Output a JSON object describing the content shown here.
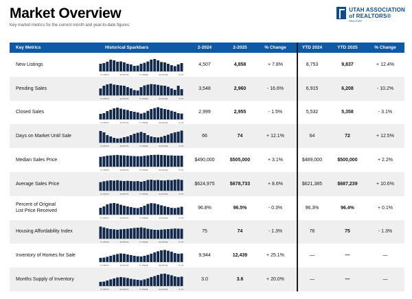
{
  "header": {
    "title": "Market Overview",
    "subtitle": "Key market metrics for the current month and year-to-date figures."
  },
  "logo": {
    "line1": "UTAH ASSOCIATION",
    "line2": "of REALTORS®",
    "small": "REALTOR®",
    "color": "#0f4a8a"
  },
  "colors": {
    "header_bg": "#0f5aa8",
    "bar": "#13294b",
    "alt_row": "#efefef"
  },
  "table": {
    "headers": [
      "Key Metrics",
      "Historical Sparkbars",
      "2-2024",
      "2-2025",
      "% Change",
      "YTD 2024",
      "YTD 2025",
      "% Change"
    ],
    "spark_ticks": [
      "2-2023",
      "8-2023",
      "2-2024",
      "8-2024",
      "2-2025"
    ],
    "rows": [
      {
        "metric": [
          "New Listings"
        ],
        "v1": "4,507",
        "v2": "4,858",
        "pct": "+ 7.8%",
        "y1": "8,753",
        "y2": "9,837",
        "ypct": "+ 12.4%",
        "spark": [
          0.55,
          0.6,
          0.7,
          0.85,
          0.8,
          0.7,
          0.72,
          0.65,
          0.55,
          0.5,
          0.4,
          0.42,
          0.55,
          0.62,
          0.72,
          0.85,
          0.9,
          0.8,
          0.68,
          0.65,
          0.55,
          0.45,
          0.38,
          0.5,
          0.6
        ]
      },
      {
        "metric": [
          "Pending Sales"
        ],
        "v1": "3,548",
        "v2": "2,960",
        "pct": "- 16.6%",
        "y1": "6,915",
        "y2": "6,208",
        "ypct": "- 10.2%",
        "spark": [
          0.5,
          0.7,
          0.8,
          0.85,
          0.78,
          0.75,
          0.72,
          0.7,
          0.6,
          0.5,
          0.38,
          0.35,
          0.6,
          0.72,
          0.78,
          0.82,
          0.8,
          0.76,
          0.72,
          0.7,
          0.62,
          0.5,
          0.4,
          0.7,
          0.45
        ]
      },
      {
        "metric": [
          "Closed Sales"
        ],
        "v1": "2,999",
        "v2": "2,955",
        "pct": "- 1.5%",
        "y1": "5,532",
        "y2": "5,358",
        "ypct": "- 3.1%",
        "spark": [
          0.4,
          0.45,
          0.6,
          0.7,
          0.8,
          0.85,
          0.78,
          0.72,
          0.68,
          0.6,
          0.55,
          0.5,
          0.42,
          0.48,
          0.62,
          0.75,
          0.82,
          0.88,
          0.8,
          0.75,
          0.7,
          0.62,
          0.55,
          0.45,
          0.42
        ]
      },
      {
        "metric": [
          "Days on Market Until Sale"
        ],
        "v1": "66",
        "v2": "74",
        "pct": "+ 12.1%",
        "y1": "64",
        "y2": "72",
        "ypct": "+ 12.5%",
        "spark": [
          0.85,
          0.75,
          0.55,
          0.45,
          0.35,
          0.3,
          0.32,
          0.4,
          0.45,
          0.55,
          0.65,
          0.72,
          0.78,
          0.7,
          0.55,
          0.45,
          0.4,
          0.38,
          0.42,
          0.5,
          0.58,
          0.68,
          0.75,
          0.8,
          0.88
        ]
      },
      {
        "metric": [
          "Median Sales Price"
        ],
        "v1": "$490,000",
        "v2": "$505,000",
        "pct": "+ 3.1%",
        "y1": "$489,000",
        "y2": "$500,000",
        "ypct": "+ 2.2%",
        "spark": [
          0.72,
          0.75,
          0.8,
          0.82,
          0.84,
          0.85,
          0.83,
          0.82,
          0.8,
          0.78,
          0.77,
          0.76,
          0.76,
          0.79,
          0.82,
          0.85,
          0.86,
          0.87,
          0.85,
          0.84,
          0.82,
          0.82,
          0.8,
          0.8,
          0.8
        ]
      },
      {
        "metric": [
          "Average Sales Price"
        ],
        "v1": "$624,975",
        "v2": "$678,733",
        "pct": "+ 8.6%",
        "y1": "$621,385",
        "y2": "$687,239",
        "ypct": "+ 10.6%",
        "spark": [
          0.62,
          0.68,
          0.72,
          0.75,
          0.73,
          0.76,
          0.72,
          0.7,
          0.72,
          0.7,
          0.68,
          0.7,
          0.65,
          0.7,
          0.78,
          0.8,
          0.76,
          0.78,
          0.75,
          0.74,
          0.78,
          0.76,
          0.8,
          0.82,
          0.78
        ]
      },
      {
        "metric": [
          "Percent of Original",
          "List Price Received"
        ],
        "v1": "96.8%",
        "v2": "96.5%",
        "pct": "- 0.3%",
        "y1": "96.3%",
        "y2": "96.4%",
        "ypct": "+ 0.1%",
        "spark": [
          0.5,
          0.6,
          0.75,
          0.82,
          0.85,
          0.8,
          0.72,
          0.65,
          0.6,
          0.55,
          0.5,
          0.48,
          0.55,
          0.65,
          0.78,
          0.84,
          0.82,
          0.75,
          0.68,
          0.62,
          0.56,
          0.5,
          0.48,
          0.52,
          0.58
        ]
      },
      {
        "metric": [
          "Housing Affordability Index"
        ],
        "v1": "75",
        "v2": "74",
        "pct": "- 1.3%",
        "y1": "76",
        "y2": "75",
        "ypct": "- 1.3%",
        "spark": [
          0.88,
          0.82,
          0.75,
          0.7,
          0.68,
          0.65,
          0.68,
          0.7,
          0.72,
          0.75,
          0.78,
          0.8,
          0.82,
          0.78,
          0.72,
          0.68,
          0.65,
          0.64,
          0.66,
          0.68,
          0.7,
          0.72,
          0.74,
          0.73,
          0.72
        ]
      },
      {
        "metric": [
          "Inventory of Homes for Sale"
        ],
        "v1": "9,944",
        "v2": "12,439",
        "pct": "+ 25.1%",
        "y1": "—",
        "y2": "—",
        "ypct": "—",
        "spark": [
          0.3,
          0.32,
          0.38,
          0.45,
          0.52,
          0.58,
          0.62,
          0.6,
          0.55,
          0.5,
          0.45,
          0.42,
          0.4,
          0.45,
          0.52,
          0.6,
          0.7,
          0.78,
          0.85,
          0.88,
          0.82,
          0.75,
          0.65,
          0.6,
          0.62
        ]
      },
      {
        "metric": [
          "Months Supply of Inventory"
        ],
        "v1": "3.0",
        "v2": "3.6",
        "pct": "+ 20.0%",
        "y1": "—",
        "y2": "—",
        "ypct": "—",
        "spark": [
          0.3,
          0.32,
          0.4,
          0.48,
          0.55,
          0.62,
          0.65,
          0.62,
          0.58,
          0.52,
          0.48,
          0.45,
          0.42,
          0.48,
          0.55,
          0.65,
          0.72,
          0.8,
          0.88,
          0.9,
          0.84,
          0.78,
          0.7,
          0.65,
          0.68
        ]
      }
    ]
  }
}
